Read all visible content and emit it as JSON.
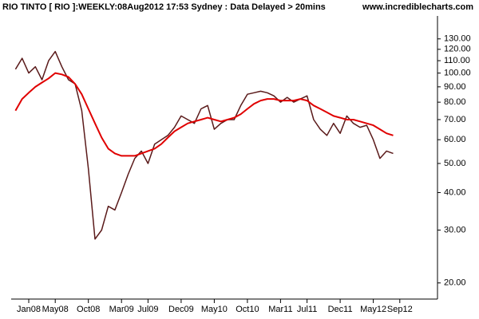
{
  "chart_data": {
    "type": "line",
    "title": "RIO TINTO [ RIO ]:WEEKLY:08Aug2012 17:53 Sydney : Data Delayed > 20mins",
    "source": "www.incrediblecharts.com",
    "log_scale": true,
    "x": [
      "Nov07",
      "Dec07",
      "Jan08",
      "Feb08",
      "Mar08",
      "Apr08",
      "May08",
      "Jun08",
      "Jul08",
      "Aug08",
      "Sep08",
      "Oct08",
      "Nov08",
      "Dec08",
      "Jan09",
      "Feb09",
      "Mar09",
      "Apr09",
      "May09",
      "Jun09",
      "Jul09",
      "Aug09",
      "Sep09",
      "Oct09",
      "Nov09",
      "Dec09",
      "Jan10",
      "Feb10",
      "Mar10",
      "Apr10",
      "May10",
      "Jun10",
      "Jul10",
      "Aug10",
      "Sep10",
      "Oct10",
      "Nov10",
      "Dec10",
      "Jan11",
      "Feb11",
      "Mar11",
      "Apr11",
      "May11",
      "Jun11",
      "Jul11",
      "Aug11",
      "Sep11",
      "Oct11",
      "Nov11",
      "Dec11",
      "Jan12",
      "Feb12",
      "Mar12",
      "Apr12",
      "May12",
      "Jun12",
      "Jul12",
      "Aug12"
    ],
    "xticks": [
      "Jan08",
      "May08",
      "Oct08",
      "Mar09",
      "Jul09",
      "Dec09",
      "May10",
      "Oct10",
      "Mar11",
      "Jul11",
      "Dec11",
      "May12",
      "Sep12"
    ],
    "series": [
      {
        "color": "#5a1a1a",
        "values": [
          103,
          112,
          100,
          105,
          95,
          110,
          118,
          105,
          95,
          92,
          75,
          48,
          28,
          30,
          36,
          35,
          40,
          46,
          52,
          55,
          50,
          58,
          60,
          62,
          66,
          72,
          70,
          68,
          76,
          78,
          65,
          68,
          70,
          70,
          78,
          85,
          86,
          87,
          86,
          84,
          80,
          83,
          80,
          82,
          84,
          70,
          65,
          62,
          68,
          63,
          72,
          68,
          66,
          67,
          60,
          52,
          55,
          54
        ]
      },
      {
        "color": "#e00000",
        "values": [
          75,
          82,
          86,
          90,
          93,
          96,
          100,
          99,
          97,
          92,
          85,
          76,
          68,
          61,
          56,
          54,
          53,
          53,
          53,
          54,
          55,
          56,
          58,
          61,
          64,
          66,
          68,
          69,
          70,
          71,
          70,
          69,
          70,
          71,
          73,
          76,
          79,
          81,
          82,
          82,
          81,
          81,
          81,
          82,
          81,
          78,
          76,
          74,
          72,
          71,
          70,
          70,
          69,
          68,
          67,
          65,
          63,
          62
        ]
      }
    ],
    "ylim": [
      18,
      155
    ],
    "yticks": [
      {
        "value": 20,
        "label": "20.00"
      },
      {
        "value": 30,
        "label": "30.00"
      },
      {
        "value": 40,
        "label": "40.00"
      },
      {
        "value": 50,
        "label": "50.00"
      },
      {
        "value": 60,
        "label": "60.00"
      },
      {
        "value": 70,
        "label": "70.00"
      },
      {
        "value": 80,
        "label": "80.00"
      },
      {
        "value": 90,
        "label": "90.00"
      },
      {
        "value": 100,
        "label": "100.00"
      },
      {
        "value": 110,
        "label": "110.00"
      },
      {
        "value": 120,
        "label": "120.00"
      },
      {
        "value": 130,
        "label": "130.00"
      }
    ]
  }
}
